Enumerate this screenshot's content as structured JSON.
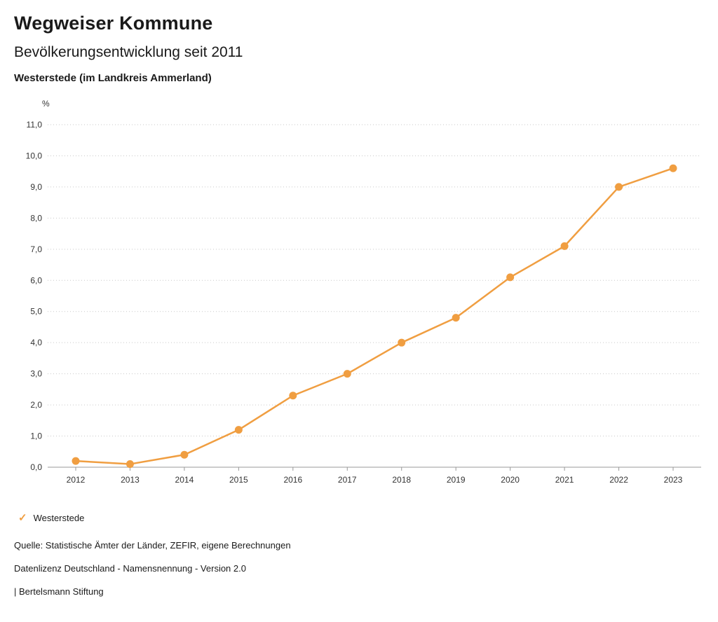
{
  "header": {
    "title": "Wegweiser Kommune",
    "subtitle": "Bevölkerungsentwicklung seit 2011",
    "region": "Westerstede (im Landkreis Ammerland)"
  },
  "chart_data": {
    "type": "line",
    "title": "Bevölkerungsentwicklung seit 2011",
    "unit_label": "%",
    "categories": [
      "2012",
      "2013",
      "2014",
      "2015",
      "2016",
      "2017",
      "2018",
      "2019",
      "2020",
      "2021",
      "2022",
      "2023"
    ],
    "series": [
      {
        "name": "Westerstede",
        "values": [
          0.2,
          0.1,
          0.4,
          1.2,
          2.3,
          3.0,
          4.0,
          4.8,
          6.1,
          7.1,
          9.0,
          9.6
        ],
        "color": "#f09e41"
      }
    ],
    "xlabel": "",
    "ylabel": "%",
    "ylim": [
      0,
      11
    ],
    "ytick_step": 1,
    "ytick_labels": [
      "0,0",
      "1,0",
      "2,0",
      "3,0",
      "4,0",
      "5,0",
      "6,0",
      "7,0",
      "8,0",
      "9,0",
      "10,0",
      "11,0"
    ],
    "grid": "horizontal-dotted",
    "legend_position": "bottom-left"
  },
  "legend": {
    "items": [
      {
        "label": "Westerstede",
        "color": "#f09e41",
        "icon": "check-icon"
      }
    ]
  },
  "footer": {
    "source": "Quelle: Statistische Ämter der Länder, ZEFIR, eigene Berechnungen",
    "license": "Datenlizenz Deutschland - Namensnennung - Version 2.0",
    "publisher": "| Bertelsmann Stiftung"
  },
  "colors": {
    "line": "#f09e41",
    "grid": "#c9c9c9",
    "axis": "#999999",
    "tick_text": "#333333"
  }
}
